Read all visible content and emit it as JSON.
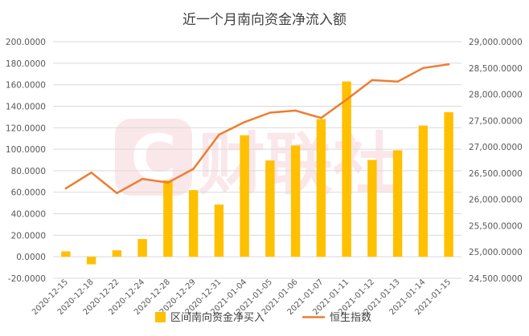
{
  "chart_data": {
    "type": "bar",
    "title": "近一个月南向资金净流入额",
    "watermark": "财联社",
    "categories": [
      "2020-12-15",
      "2020-12-18",
      "2020-12-22",
      "2020-12-24",
      "2020-12-28",
      "2020-12-29",
      "2020-12-31",
      "2021-01-04",
      "2021-01-05",
      "2021-01-06",
      "2021-01-07",
      "2021-01-11",
      "2021-01-12",
      "2021-01-13",
      "2021-01-14",
      "2021-01-15"
    ],
    "series": [
      {
        "name": "区间南向资金净买入",
        "type": "bar",
        "axis": "left",
        "color": "#FFC000",
        "values": [
          5,
          -7,
          6,
          16.5,
          71,
          62,
          48.5,
          113,
          89.5,
          103.5,
          128,
          163,
          90,
          99,
          122,
          134.5
        ]
      },
      {
        "name": "恒生指数",
        "type": "line",
        "axis": "right",
        "color": "#ED7D31",
        "values": [
          26210,
          26510,
          26120,
          26390,
          26320,
          26580,
          27230,
          27470,
          27650,
          27690,
          27550,
          27900,
          28270,
          28240,
          28500,
          28570
        ]
      }
    ],
    "left_axis": {
      "min": -20,
      "max": 200,
      "step": 20,
      "tick_labels": [
        "-20.0000",
        "0.0000",
        "20.0000",
        "40.0000",
        "60.0000",
        "80.0000",
        "100.0000",
        "120.0000",
        "140.0000",
        "160.0000",
        "180.0000",
        "200.0000"
      ]
    },
    "right_axis": {
      "min": 24500,
      "max": 29000,
      "step": 500,
      "tick_labels": [
        "24,500.0000",
        "25,000.0000",
        "25,500.0000",
        "26,000.0000",
        "26,500.0000",
        "27,000.0000",
        "27,500.0000",
        "28,000.0000",
        "28,500.0000",
        "29,000.0000"
      ]
    },
    "grid": true,
    "legend_position": "bottom"
  }
}
